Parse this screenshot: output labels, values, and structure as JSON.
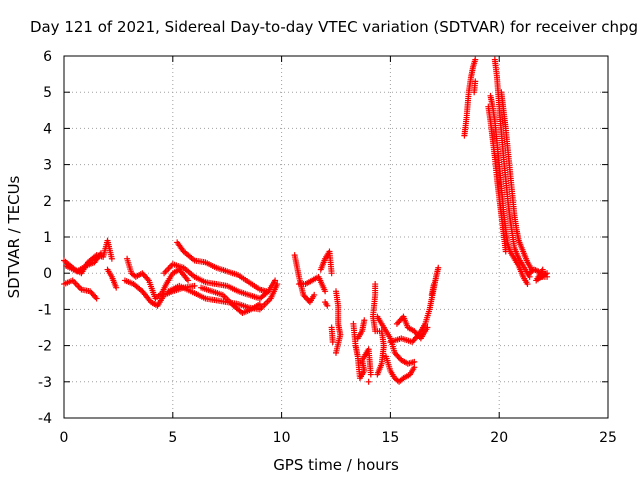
{
  "chart_data": {
    "type": "scatter",
    "title": "Day 121 of 2021, Sidereal Day-to-day VTEC variation (SDTVAR) for receiver chpg",
    "xlabel": "GPS time / hours",
    "ylabel": "SDTVAR / TECUs",
    "xlim": [
      0,
      25
    ],
    "ylim": [
      -4,
      6
    ],
    "x_ticks": [
      "0",
      "5",
      "10",
      "15",
      "20",
      "25"
    ],
    "y_ticks": [
      "-4",
      "-3",
      "-2",
      "-1",
      "0",
      "1",
      "2",
      "3",
      "4",
      "5",
      "6"
    ],
    "grid": true,
    "marker": "+",
    "color": "#ff0000",
    "series": [
      {
        "traces": [
          [
            [
              0.0,
              0.35
            ],
            [
              0.5,
              0.1
            ],
            [
              0.8,
              0.0
            ],
            [
              1.1,
              0.3
            ],
            [
              1.5,
              0.5
            ],
            [
              1.8,
              0.45
            ],
            [
              2.0,
              0.9
            ],
            [
              2.2,
              0.4
            ]
          ],
          [
            [
              0.0,
              -0.3
            ],
            [
              0.4,
              -0.2
            ],
            [
              0.8,
              -0.45
            ],
            [
              1.2,
              -0.5
            ],
            [
              1.5,
              -0.7
            ]
          ],
          [
            [
              0.1,
              0.2
            ],
            [
              0.6,
              0.05
            ],
            [
              1.0,
              0.2
            ],
            [
              1.4,
              0.3
            ],
            [
              1.7,
              0.55
            ]
          ],
          [
            [
              2.0,
              0.1
            ],
            [
              2.2,
              -0.1
            ],
            [
              2.4,
              -0.4
            ]
          ],
          [
            [
              2.9,
              0.4
            ],
            [
              3.1,
              0.0
            ],
            [
              3.3,
              -0.1
            ],
            [
              3.6,
              0.0
            ],
            [
              3.9,
              -0.2
            ],
            [
              4.2,
              -0.7
            ],
            [
              4.5,
              -0.55
            ],
            [
              4.7,
              -0.3
            ],
            [
              5.0,
              0.0
            ],
            [
              5.3,
              0.1
            ],
            [
              5.7,
              -0.2
            ]
          ],
          [
            [
              2.8,
              -0.2
            ],
            [
              3.2,
              -0.3
            ],
            [
              3.6,
              -0.5
            ],
            [
              4.0,
              -0.8
            ],
            [
              4.3,
              -0.9
            ],
            [
              4.6,
              -0.6
            ],
            [
              5.0,
              -0.5
            ],
            [
              5.5,
              -0.4
            ],
            [
              6.0,
              -0.35
            ]
          ],
          [
            [
              4.6,
              0.0
            ],
            [
              5.0,
              0.25
            ],
            [
              5.5,
              0.15
            ],
            [
              6.0,
              -0.1
            ],
            [
              6.5,
              -0.25
            ],
            [
              7.0,
              -0.3
            ],
            [
              7.5,
              -0.35
            ],
            [
              8.0,
              -0.5
            ],
            [
              8.5,
              -0.6
            ],
            [
              9.0,
              -0.7
            ],
            [
              9.4,
              -0.5
            ],
            [
              9.7,
              -0.2
            ]
          ],
          [
            [
              4.8,
              -0.5
            ],
            [
              5.3,
              -0.35
            ],
            [
              6.0,
              -0.55
            ],
            [
              6.5,
              -0.7
            ],
            [
              7.0,
              -0.75
            ],
            [
              7.5,
              -0.8
            ],
            [
              8.0,
              -0.85
            ],
            [
              8.5,
              -0.95
            ],
            [
              9.0,
              -1.0
            ],
            [
              9.5,
              -0.7
            ],
            [
              9.8,
              -0.3
            ]
          ],
          [
            [
              5.2,
              0.85
            ],
            [
              5.5,
              0.6
            ],
            [
              6.0,
              0.35
            ],
            [
              6.5,
              0.3
            ],
            [
              7.0,
              0.15
            ],
            [
              7.5,
              0.05
            ],
            [
              8.0,
              -0.05
            ],
            [
              8.5,
              -0.25
            ],
            [
              9.0,
              -0.45
            ],
            [
              9.3,
              -0.5
            ]
          ],
          [
            [
              6.3,
              -0.4
            ],
            [
              6.8,
              -0.5
            ],
            [
              7.3,
              -0.6
            ],
            [
              7.8,
              -0.9
            ],
            [
              8.2,
              -1.1
            ],
            [
              8.6,
              -1.0
            ],
            [
              9.0,
              -0.85
            ]
          ],
          [
            [
              10.6,
              0.5
            ],
            [
              10.8,
              -0.1
            ],
            [
              11.0,
              -0.6
            ],
            [
              11.3,
              -0.8
            ],
            [
              11.5,
              -0.6
            ]
          ],
          [
            [
              10.8,
              -0.3
            ],
            [
              11.1,
              -0.3
            ],
            [
              11.4,
              -0.2
            ],
            [
              11.7,
              -0.1
            ],
            [
              12.0,
              -0.5
            ]
          ],
          [
            [
              11.8,
              0.1
            ],
            [
              12.0,
              0.4
            ],
            [
              12.2,
              0.6
            ],
            [
              12.3,
              0.0
            ]
          ],
          [
            [
              12.0,
              -0.8
            ],
            [
              12.1,
              -0.9
            ]
          ],
          [
            [
              12.5,
              -0.5
            ],
            [
              12.6,
              -0.9
            ],
            [
              12.6,
              -1.4
            ],
            [
              12.7,
              -1.7
            ],
            [
              12.5,
              -2.2
            ]
          ],
          [
            [
              12.3,
              -1.5
            ],
            [
              12.35,
              -1.9
            ]
          ],
          [
            [
              13.3,
              -1.4
            ],
            [
              13.4,
              -2.0
            ],
            [
              13.5,
              -2.3
            ],
            [
              13.6,
              -2.9
            ],
            [
              13.8,
              -2.7
            ],
            [
              13.7,
              -2.4
            ],
            [
              14.0,
              -2.1
            ],
            [
              14.1,
              -2.8
            ]
          ],
          [
            [
              13.8,
              -1.3
            ],
            [
              13.7,
              -1.6
            ],
            [
              13.5,
              -1.8
            ]
          ],
          [
            [
              14.0,
              -3.0
            ]
          ],
          [
            [
              14.3,
              -0.3
            ],
            [
              14.3,
              -0.6
            ],
            [
              14.2,
              -1.2
            ],
            [
              14.3,
              -1.6
            ],
            [
              14.6,
              -1.6
            ],
            [
              14.7,
              -2.0
            ],
            [
              14.6,
              -2.5
            ],
            [
              14.4,
              -2.8
            ]
          ],
          [
            [
              14.4,
              -1.2
            ],
            [
              14.7,
              -1.5
            ],
            [
              15.0,
              -1.8
            ],
            [
              15.2,
              -2.2
            ],
            [
              15.5,
              -2.4
            ],
            [
              15.8,
              -2.5
            ],
            [
              16.1,
              -2.45
            ]
          ],
          [
            [
              14.8,
              -2.3
            ],
            [
              15.0,
              -2.7
            ],
            [
              15.2,
              -2.9
            ],
            [
              15.4,
              -3.0
            ],
            [
              15.6,
              -2.9
            ],
            [
              15.9,
              -2.8
            ],
            [
              16.1,
              -2.6
            ]
          ],
          [
            [
              15.0,
              -1.9
            ],
            [
              15.5,
              -1.8
            ],
            [
              16.0,
              -1.9
            ],
            [
              16.3,
              -1.7
            ],
            [
              16.6,
              -1.4
            ],
            [
              16.8,
              -1.0
            ],
            [
              17.0,
              -0.4
            ],
            [
              17.1,
              -0.1
            ],
            [
              17.2,
              0.15
            ]
          ],
          [
            [
              15.3,
              -1.4
            ],
            [
              15.6,
              -1.2
            ],
            [
              15.8,
              -1.5
            ],
            [
              16.1,
              -1.6
            ],
            [
              16.4,
              -1.8
            ],
            [
              16.7,
              -1.5
            ]
          ],
          [
            [
              16.9,
              -0.6
            ],
            [
              17.0,
              -0.3
            ]
          ],
          [
            [
              18.4,
              3.8
            ],
            [
              18.5,
              4.3
            ],
            [
              18.6,
              5.0
            ],
            [
              18.7,
              5.4
            ],
            [
              18.8,
              5.7
            ],
            [
              18.9,
              5.9
            ]
          ],
          [
            [
              18.9,
              5.3
            ],
            [
              18.85,
              5.0
            ]
          ],
          [
            [
              19.6,
              4.9
            ],
            [
              19.7,
              4.6
            ],
            [
              19.8,
              4.2
            ],
            [
              19.9,
              3.6
            ],
            [
              20.0,
              3.0
            ],
            [
              20.1,
              2.4
            ],
            [
              20.2,
              1.7
            ],
            [
              20.3,
              1.2
            ],
            [
              20.4,
              0.8
            ],
            [
              20.5,
              0.6
            ],
            [
              20.7,
              0.4
            ],
            [
              20.9,
              0.2
            ],
            [
              21.1,
              -0.1
            ],
            [
              21.3,
              -0.3
            ]
          ],
          [
            [
              19.8,
              5.9
            ],
            [
              19.9,
              5.4
            ],
            [
              20.0,
              4.6
            ],
            [
              20.1,
              3.9
            ],
            [
              20.2,
              3.2
            ],
            [
              20.3,
              2.6
            ],
            [
              20.4,
              2.0
            ],
            [
              20.5,
              1.5
            ],
            [
              20.6,
              1.1
            ],
            [
              20.7,
              0.7
            ],
            [
              20.9,
              0.4
            ],
            [
              21.1,
              0.2
            ],
            [
              21.4,
              -0.1
            ]
          ],
          [
            [
              20.1,
              5.0
            ],
            [
              20.2,
              4.5
            ],
            [
              20.3,
              4.0
            ],
            [
              20.4,
              3.4
            ],
            [
              20.5,
              2.8
            ],
            [
              20.6,
              2.2
            ],
            [
              20.7,
              1.6
            ],
            [
              20.8,
              1.2
            ],
            [
              20.9,
              0.9
            ],
            [
              21.1,
              0.6
            ],
            [
              21.3,
              0.3
            ],
            [
              21.5,
              0.1
            ]
          ],
          [
            [
              19.5,
              4.6
            ],
            [
              19.6,
              4.2
            ],
            [
              19.7,
              3.7
            ],
            [
              19.8,
              3.2
            ],
            [
              19.9,
              2.6
            ],
            [
              20.0,
              2.1
            ],
            [
              20.1,
              1.6
            ],
            [
              20.2,
              1.1
            ],
            [
              20.3,
              0.6
            ]
          ],
          [
            [
              21.4,
              0.0
            ],
            [
              21.6,
              0.1
            ],
            [
              21.8,
              0.05
            ],
            [
              22.0,
              -0.05
            ],
            [
              22.2,
              0.0
            ],
            [
              21.7,
              -0.2
            ],
            [
              22.0,
              0.1
            ],
            [
              21.9,
              -0.1
            ],
            [
              22.2,
              -0.1
            ]
          ]
        ]
      }
    ]
  }
}
